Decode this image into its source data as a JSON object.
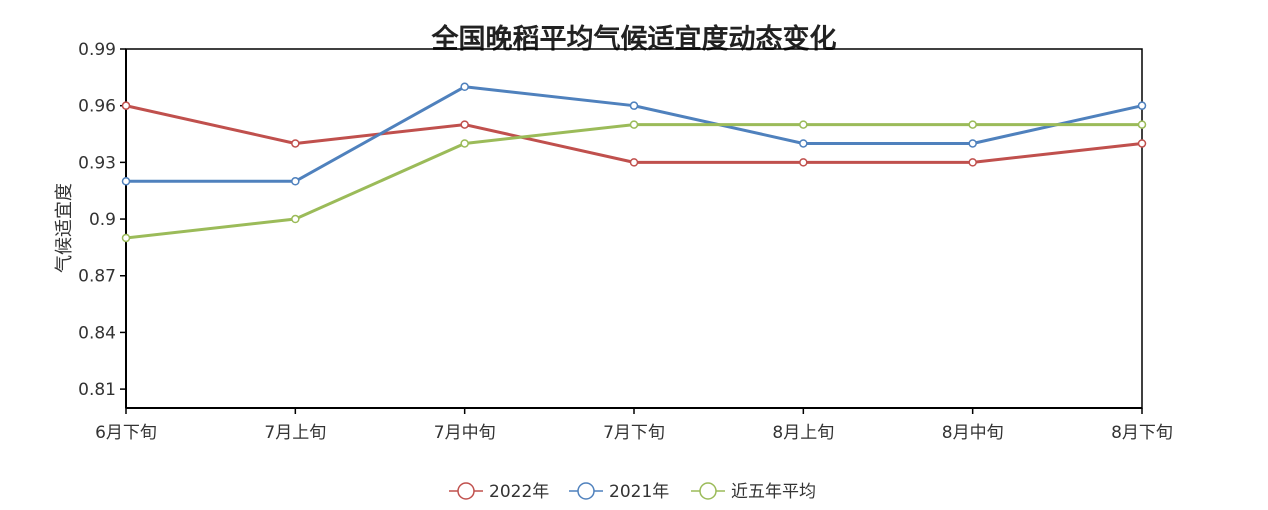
{
  "chart_data": {
    "type": "line",
    "title": "全国晚稻平均气候适宜度动态变化",
    "xlabel": "",
    "ylabel": "气候适宜度",
    "categories": [
      "6月下旬",
      "7月上旬",
      "7月中旬",
      "7月下旬",
      "8月上旬",
      "8月中旬",
      "8月下旬"
    ],
    "ylim": [
      0.8,
      0.99
    ],
    "yticks": [
      "0.81",
      "0.84",
      "0.87",
      "0.9",
      "0.93",
      "0.96",
      "0.99"
    ],
    "grid": false,
    "legend_position": "bottom-center",
    "series": [
      {
        "name": "2022年",
        "color": "#C0504D",
        "values": [
          0.96,
          0.94,
          0.95,
          0.93,
          0.93,
          0.93,
          0.94
        ]
      },
      {
        "name": "2021年",
        "color": "#4F81BD",
        "values": [
          0.92,
          0.92,
          0.97,
          0.96,
          0.94,
          0.94,
          0.96
        ]
      },
      {
        "name": "近五年平均",
        "color": "#9BBB59",
        "values": [
          0.89,
          0.9,
          0.94,
          0.95,
          0.95,
          0.95,
          0.95
        ]
      }
    ]
  }
}
